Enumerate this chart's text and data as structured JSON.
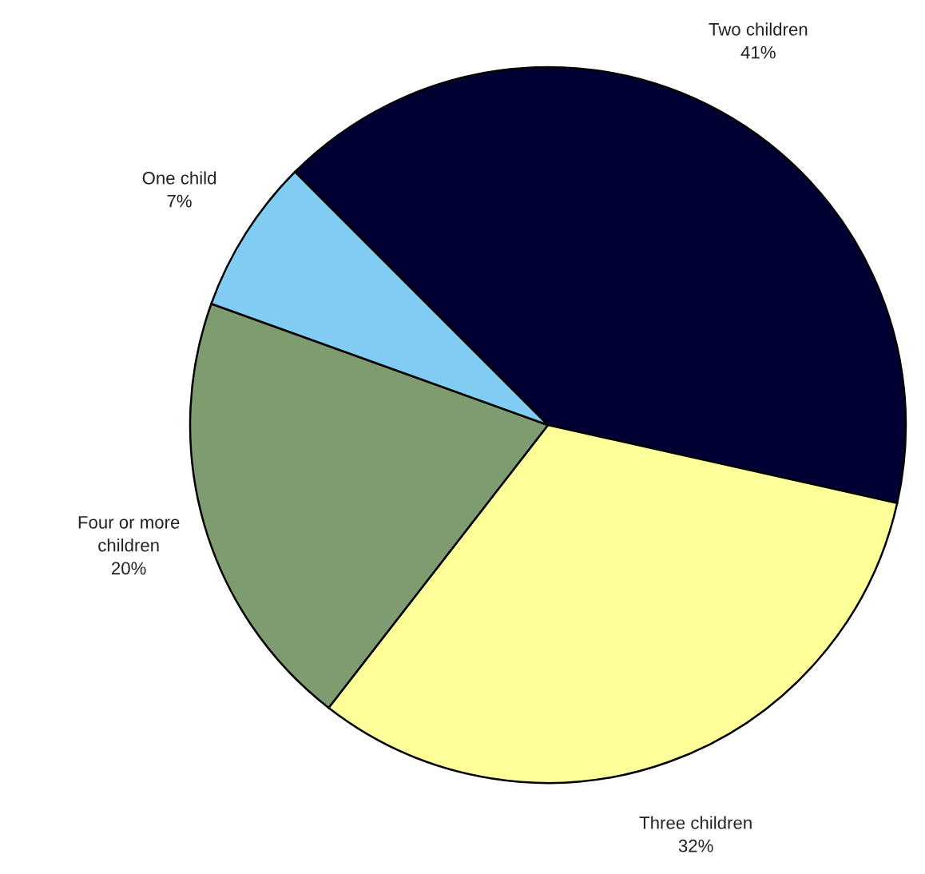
{
  "chart_data": {
    "type": "pie",
    "categories": [
      "Two children",
      "Three children",
      "Four or more children",
      "One child"
    ],
    "values": [
      41,
      32,
      20,
      7
    ],
    "value_labels": [
      "41%",
      "32%",
      "20%",
      "7%"
    ],
    "colors": [
      "#000033",
      "#ffff99",
      "#7f9c70",
      "#80ccf2"
    ]
  }
}
